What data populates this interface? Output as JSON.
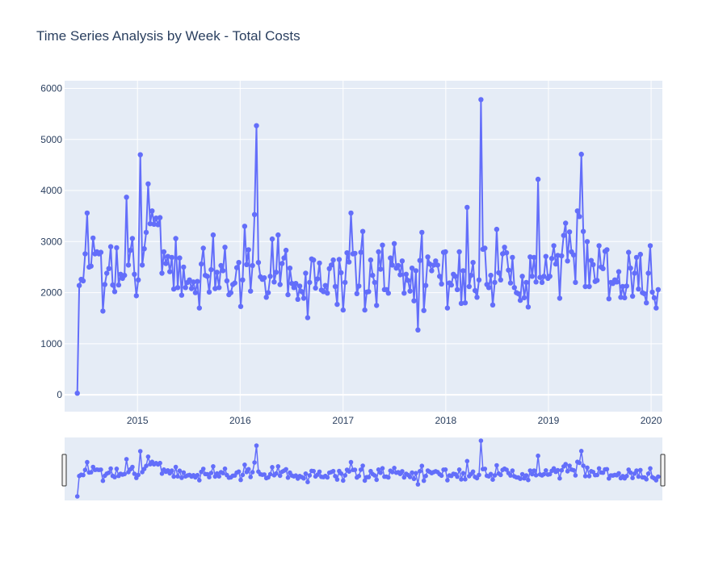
{
  "chart_data": {
    "type": "line",
    "title": "Time Series Analysis by Week - Total Costs",
    "xlabel": "",
    "ylabel": "",
    "x_start": "2014-06-01",
    "x_step_days": 7,
    "xlim": [
      "2014-04-17",
      "2020-02-10"
    ],
    "ylim": [
      -330,
      6150
    ],
    "y_ticks": [
      0,
      1000,
      2000,
      3000,
      4000,
      5000,
      6000
    ],
    "x_ticks": [
      {
        "date": "2015-01-01",
        "label": "2015"
      },
      {
        "date": "2016-01-01",
        "label": "2016"
      },
      {
        "date": "2017-01-01",
        "label": "2017"
      },
      {
        "date": "2018-01-01",
        "label": "2018"
      },
      {
        "date": "2019-01-01",
        "label": "2019"
      },
      {
        "date": "2020-01-01",
        "label": "2020"
      }
    ],
    "grid": true,
    "mode": "lines+markers",
    "range_slider": true,
    "series": [
      {
        "name": "",
        "color": "#636efa",
        "values": [
          30,
          2140,
          2260,
          2230,
          2760,
          3560,
          2500,
          2520,
          3070,
          2760,
          2800,
          2760,
          2790,
          1640,
          2160,
          2380,
          2470,
          2900,
          2150,
          2020,
          2880,
          2150,
          2360,
          2280,
          2340,
          3870,
          2540,
          2830,
          3060,
          2360,
          1940,
          2250,
          4700,
          2540,
          2860,
          3180,
          4130,
          3350,
          3600,
          3340,
          3460,
          3330,
          3470,
          2380,
          2800,
          2570,
          2710,
          2410,
          2690,
          2070,
          3060,
          2100,
          2680,
          1950,
          2500,
          2100,
          2200,
          2250,
          2080,
          2210,
          2000,
          2220,
          1700,
          2560,
          2870,
          2340,
          2320,
          2010,
          2450,
          3130,
          2080,
          2400,
          2100,
          2530,
          2430,
          2890,
          2230,
          1960,
          2000,
          2160,
          2190,
          2490,
          2590,
          1730,
          2250,
          3300,
          2550,
          2840,
          2030,
          2530,
          3530,
          5270,
          2590,
          2310,
          2260,
          2290,
          1910,
          2000,
          2320,
          3050,
          2210,
          2400,
          3130,
          2160,
          2570,
          2680,
          2830,
          1960,
          2480,
          2180,
          2100,
          2180,
          1870,
          2130,
          2020,
          1890,
          2380,
          1510,
          2200,
          2660,
          2640,
          2090,
          2270,
          2580,
          2050,
          2020,
          2140,
          1990,
          2470,
          2540,
          2640,
          2120,
          1770,
          2650,
          2390,
          1660,
          2200,
          2780,
          2600,
          3560,
          2760,
          2770,
          1980,
          2130,
          2790,
          3200,
          1660,
          2010,
          2020,
          2640,
          2340,
          2200,
          1750,
          2800,
          2460,
          2930,
          2060,
          2060,
          1990,
          2680,
          2540,
          2960,
          2480,
          2530,
          2350,
          2620,
          1990,
          2360,
          2240,
          2030,
          2480,
          1840,
          2430,
          1270,
          2630,
          3180,
          1650,
          2140,
          2700,
          2560,
          2430,
          2540,
          2620,
          2540,
          2320,
          2170,
          2790,
          2800,
          1700,
          2190,
          2150,
          2360,
          2320,
          2060,
          2800,
          1790,
          2430,
          1800,
          3670,
          2120,
          2340,
          2590,
          2040,
          1910,
          2250,
          5780,
          2850,
          2870,
          2160,
          2100,
          2340,
          1760,
          2200,
          3240,
          2390,
          2250,
          2760,
          2890,
          2780,
          2440,
          2190,
          2690,
          2100,
          2000,
          1980,
          1850,
          2320,
          1900,
          2200,
          1720,
          2700,
          2320,
          2690,
          2210,
          4220,
          2300,
          2200,
          2320,
          2710,
          2280,
          2320,
          2670,
          2920,
          2560,
          2730,
          1890,
          2720,
          3120,
          3360,
          2620,
          3190,
          2800,
          2740,
          2200,
          3600,
          3490,
          4710,
          3200,
          2120,
          3000,
          2120,
          2630,
          2550,
          2220,
          2240,
          2920,
          2500,
          2470,
          2810,
          2840,
          1880,
          2200,
          2180,
          2250,
          2210,
          2410,
          1910,
          2120,
          1900,
          2130,
          2790,
          2480,
          1930,
          2380,
          2690,
          2070,
          2750,
          2000,
          1980,
          1800,
          2380,
          2920,
          2010,
          1900,
          1700,
          2060
        ]
      }
    ]
  }
}
